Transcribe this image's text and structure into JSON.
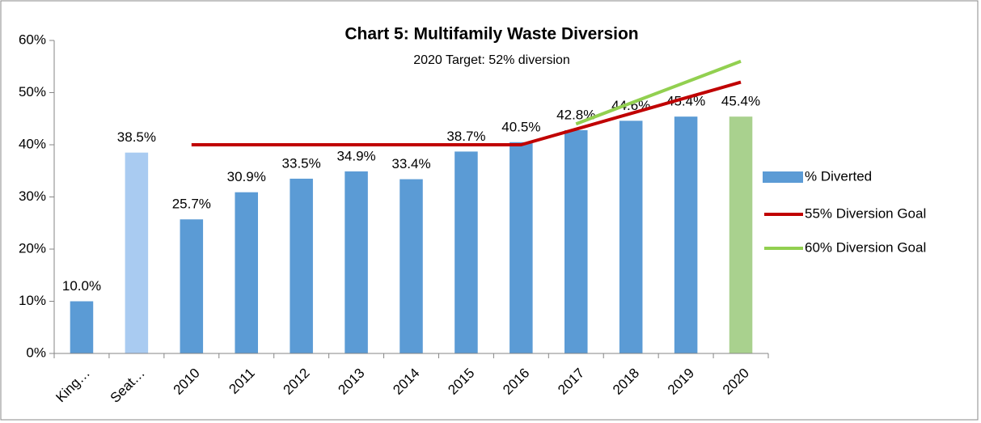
{
  "chart_data": {
    "type": "bar",
    "title": "Chart 5: Multifamily Waste Diversion",
    "subtitle": "2020 Target:  52% diversion",
    "categories": [
      "King…",
      "Seat…",
      "2010",
      "2011",
      "2012",
      "2013",
      "2014",
      "2015",
      "2016",
      "2017",
      "2018",
      "2019",
      "2020"
    ],
    "series": [
      {
        "name": "% Diverted",
        "type": "bar",
        "color": "#5b9bd5",
        "colors": [
          "#5b9bd5",
          "#a9cbf1",
          "#5b9bd5",
          "#5b9bd5",
          "#5b9bd5",
          "#5b9bd5",
          "#5b9bd5",
          "#5b9bd5",
          "#5b9bd5",
          "#5b9bd5",
          "#5b9bd5",
          "#5b9bd5",
          "#a9d18e"
        ],
        "values": [
          10.0,
          38.5,
          25.7,
          30.9,
          33.5,
          34.9,
          33.4,
          38.7,
          40.5,
          42.8,
          44.6,
          45.4,
          45.4
        ],
        "value_labels": [
          "10.0%",
          "38.5%",
          "25.7%",
          "30.9%",
          "33.5%",
          "34.9%",
          "33.4%",
          "38.7%",
          "40.5%",
          "42.8%",
          "44.6%",
          "45.4%",
          "45.4%"
        ]
      },
      {
        "name": "55% Diversion Goal",
        "type": "line",
        "color": "#c00000",
        "values": [
          null,
          null,
          40,
          40,
          40,
          40,
          40,
          40,
          40,
          43,
          46,
          49,
          52
        ]
      },
      {
        "name": "60% Diversion Goal",
        "type": "line",
        "color": "#92d050",
        "values": [
          null,
          null,
          null,
          null,
          null,
          null,
          null,
          null,
          null,
          44,
          48,
          52,
          56
        ]
      }
    ],
    "ylim": [
      0,
      60
    ],
    "yticks": [
      {
        "value": 0,
        "label": "0%"
      },
      {
        "value": 10,
        "label": "10%"
      },
      {
        "value": 20,
        "label": "20%"
      },
      {
        "value": 30,
        "label": "30%"
      },
      {
        "value": 40,
        "label": "40%"
      },
      {
        "value": 50,
        "label": "50%"
      },
      {
        "value": 60,
        "label": "60%"
      }
    ],
    "legend": "right"
  }
}
